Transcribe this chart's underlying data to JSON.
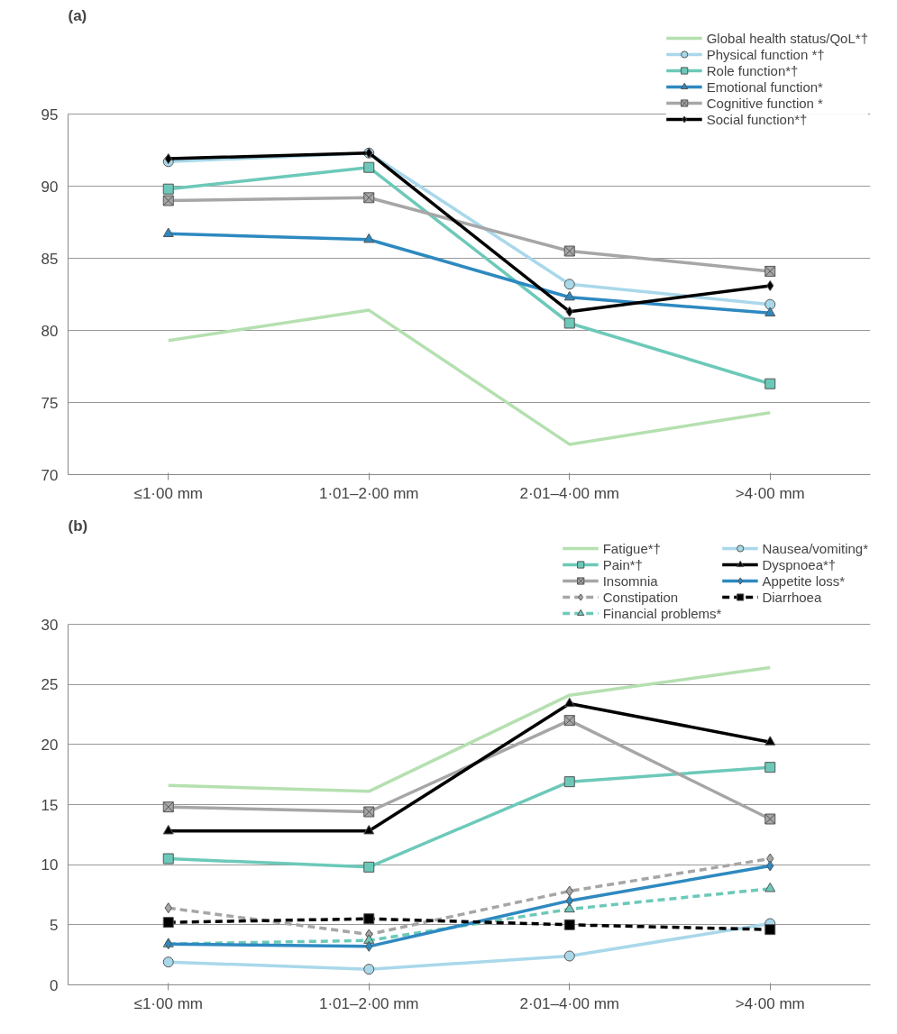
{
  "chart_data": [
    {
      "type": "line",
      "title": "(a)",
      "categories": [
        "≤1·00 mm",
        "1·01–2·00 mm",
        "2·01–4·00 mm",
        ">4·00 mm"
      ],
      "ylim": [
        70,
        95
      ],
      "yticks": [
        70,
        75,
        80,
        85,
        90,
        95
      ],
      "grid": "y",
      "legend": "top right",
      "line_style": "solid",
      "series": [
        {
          "name": "Global health status/QoL*†",
          "color": "#b5e0b0",
          "marker": "none",
          "values": [
            79.3,
            81.4,
            72.1,
            74.3
          ]
        },
        {
          "name": "Physical function *†",
          "color": "#a9d8ea",
          "marker": "circle",
          "values": [
            91.7,
            92.3,
            83.2,
            81.8
          ]
        },
        {
          "name": "Role function*†",
          "color": "#6cc9b9",
          "marker": "square",
          "values": [
            89.8,
            91.3,
            80.5,
            76.3
          ]
        },
        {
          "name": "Emotional function*",
          "color": "#2e89c0",
          "marker": "triangle",
          "values": [
            86.7,
            86.3,
            82.3,
            81.2
          ]
        },
        {
          "name": "Cognitive function *",
          "color": "#a6a6a6",
          "marker": "cross",
          "values": [
            89.0,
            89.2,
            85.5,
            84.1
          ]
        },
        {
          "name": "Social function*†",
          "color": "#000000",
          "marker": "diamond",
          "values": [
            91.9,
            92.3,
            81.3,
            83.1
          ]
        }
      ]
    },
    {
      "type": "line",
      "title": "(b)",
      "categories": [
        "≤1·00 mm",
        "1·01–2·00 mm",
        "2·01–4·00 mm",
        ">4·00 mm"
      ],
      "ylim": [
        0,
        30
      ],
      "yticks": [
        0,
        5,
        10,
        15,
        20,
        25,
        30
      ],
      "grid": "y",
      "legend": "top right",
      "line_style": "solid",
      "series": [
        {
          "name": "Fatigue*†",
          "color": "#b5e0b0",
          "marker": "none",
          "values": [
            16.6,
            16.1,
            24.1,
            26.4
          ]
        },
        {
          "name": "Pain*†",
          "color": "#6cc9b9",
          "marker": "square",
          "values": [
            10.5,
            9.8,
            16.9,
            18.1
          ]
        },
        {
          "name": "Insomnia",
          "color": "#a6a6a6",
          "marker": "cross",
          "values": [
            14.8,
            14.4,
            22.0,
            13.8
          ]
        },
        {
          "name": "Constipation",
          "color": "#a6a6a6",
          "marker": "diamond",
          "line_style": "dashed",
          "values": [
            6.4,
            4.2,
            7.8,
            10.5
          ]
        },
        {
          "name": "Financial problems*",
          "color": "#6cc9b9",
          "marker": "triangle",
          "line_style": "dashed",
          "values": [
            3.4,
            3.7,
            6.3,
            8.0
          ]
        },
        {
          "name": "Nausea/vomiting*",
          "color": "#a9d8ea",
          "marker": "circle",
          "values": [
            1.9,
            1.3,
            2.4,
            5.1
          ]
        },
        {
          "name": "Dyspnoea*†",
          "color": "#000000",
          "marker": "triangle",
          "values": [
            12.8,
            12.8,
            23.4,
            20.2
          ]
        },
        {
          "name": "Appetite loss*",
          "color": "#2e89c0",
          "marker": "diamond",
          "values": [
            3.4,
            3.2,
            7.0,
            9.9
          ]
        },
        {
          "name": "Diarrhoea",
          "color": "#000000",
          "marker": "square",
          "line_style": "dashed",
          "values": [
            5.2,
            5.5,
            5.0,
            4.6
          ]
        }
      ]
    }
  ]
}
